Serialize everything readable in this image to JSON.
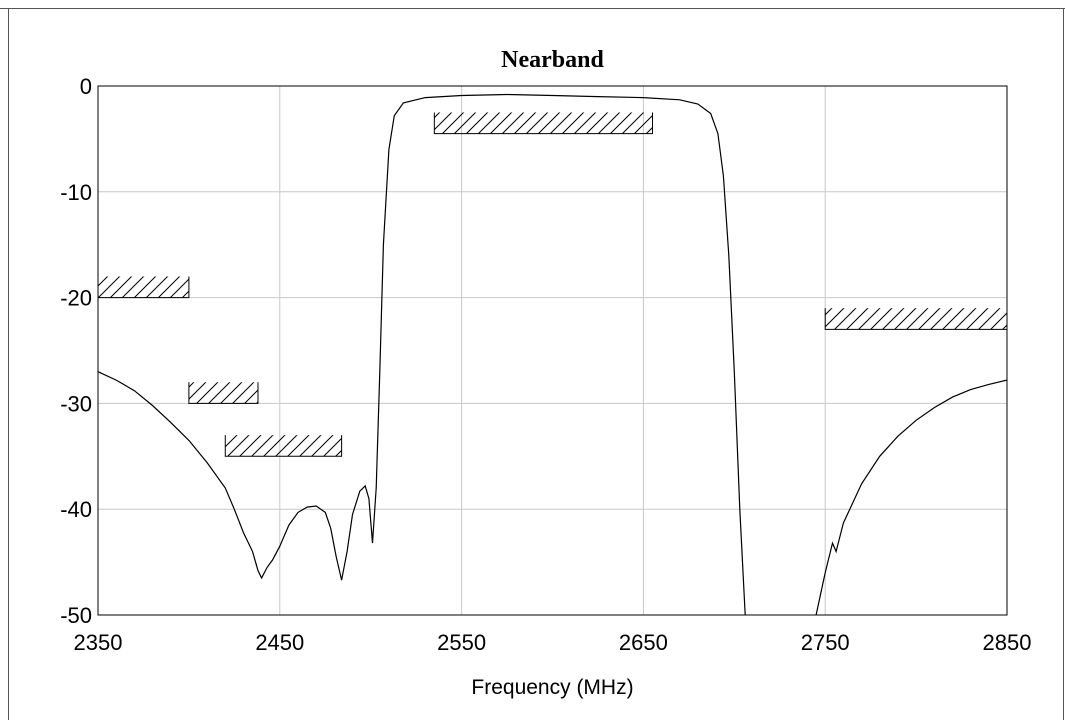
{
  "chart_data": {
    "type": "line",
    "title": "Nearband",
    "xlabel": "Frequency (MHz)",
    "ylabel": "",
    "xlim": [
      2350,
      2850
    ],
    "ylim": [
      -50,
      0
    ],
    "grid": true,
    "x_ticks": [
      "2350",
      "2450",
      "2550",
      "2650",
      "2750",
      "2850"
    ],
    "y_ticks": [
      "0",
      "-10",
      "-20",
      "-30",
      "-40",
      "-50"
    ],
    "x_tick_values": [
      2350,
      2450,
      2550,
      2650,
      2750,
      2850
    ],
    "y_tick_values": [
      0,
      -10,
      -20,
      -30,
      -40,
      -50
    ],
    "series": [
      {
        "segments": [
          [
            [
              2350,
              -27
            ],
            [
              2360,
              -27.8
            ],
            [
              2370,
              -28.8
            ],
            [
              2380,
              -30.2
            ],
            [
              2390,
              -31.8
            ],
            [
              2400,
              -33.5
            ],
            [
              2410,
              -35.6
            ],
            [
              2420,
              -38
            ],
            [
              2425,
              -40
            ],
            [
              2430,
              -42.2
            ],
            [
              2435,
              -44
            ],
            [
              2438,
              -45.8
            ],
            [
              2440,
              -46.5
            ],
            [
              2443,
              -45.5
            ],
            [
              2446,
              -44.8
            ],
            [
              2450,
              -43.5
            ],
            [
              2455,
              -41.5
            ],
            [
              2460,
              -40.3
            ],
            [
              2465,
              -39.8
            ],
            [
              2470,
              -39.7
            ],
            [
              2475,
              -40.3
            ],
            [
              2478,
              -41.8
            ],
            [
              2481,
              -44.5
            ],
            [
              2484,
              -46.7
            ],
            [
              2487,
              -44
            ],
            [
              2490,
              -40.5
            ],
            [
              2494,
              -38.3
            ],
            [
              2497,
              -37.8
            ],
            [
              2499,
              -39
            ],
            [
              2501,
              -43.2
            ],
            [
              2503,
              -38
            ],
            [
              2505,
              -27
            ],
            [
              2507,
              -15
            ],
            [
              2510,
              -6
            ],
            [
              2513,
              -2.8
            ],
            [
              2518,
              -1.6
            ],
            [
              2530,
              -1.1
            ],
            [
              2550,
              -0.9
            ],
            [
              2575,
              -0.8
            ],
            [
              2600,
              -0.9
            ],
            [
              2625,
              -1.0
            ],
            [
              2650,
              -1.1
            ],
            [
              2670,
              -1.3
            ],
            [
              2680,
              -1.7
            ],
            [
              2687,
              -2.6
            ],
            [
              2691,
              -4.5
            ],
            [
              2694,
              -8.5
            ],
            [
              2697,
              -16
            ],
            [
              2700,
              -27
            ],
            [
              2703,
              -40
            ],
            [
              2706,
              -50
            ]
          ],
          [
            [
              2745,
              -50
            ],
            [
              2750,
              -46
            ],
            [
              2754,
              -43.2
            ],
            [
              2756,
              -44
            ],
            [
              2760,
              -41.3
            ],
            [
              2770,
              -37.6
            ],
            [
              2780,
              -35
            ],
            [
              2790,
              -33.1
            ],
            [
              2800,
              -31.6
            ],
            [
              2810,
              -30.4
            ],
            [
              2820,
              -29.4
            ],
            [
              2830,
              -28.7
            ],
            [
              2840,
              -28.2
            ],
            [
              2850,
              -27.8
            ]
          ]
        ]
      }
    ],
    "mask_regions": [
      {
        "x": [
          2350,
          2400
        ],
        "y": [
          -20,
          -18
        ]
      },
      {
        "x": [
          2400,
          2438
        ],
        "y": [
          -30,
          -28
        ]
      },
      {
        "x": [
          2420,
          2484
        ],
        "y": [
          -35,
          -33
        ]
      },
      {
        "x": [
          2535,
          2655
        ],
        "y": [
          -4.5,
          -2.5
        ]
      },
      {
        "x": [
          2750,
          2850
        ],
        "y": [
          -23,
          -21
        ]
      }
    ]
  }
}
